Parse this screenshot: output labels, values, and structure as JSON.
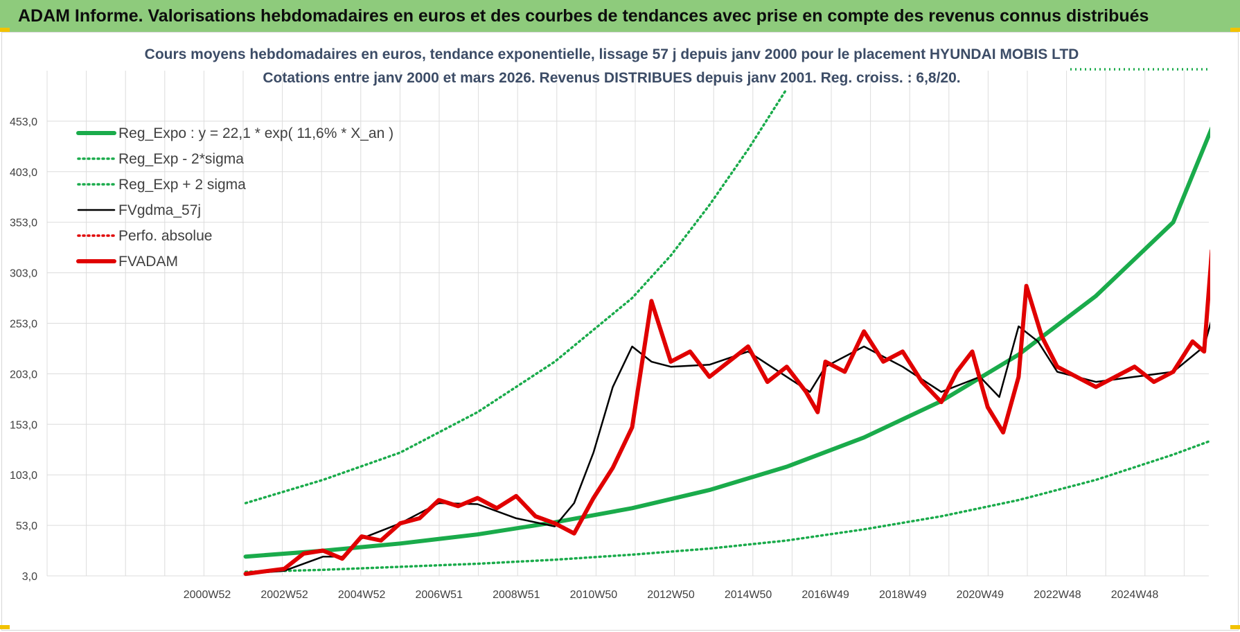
{
  "banner": {
    "title": "ADAM Informe. Valorisations hebdomadaires en euros et des courbes de tendances avec prise en compte des revenus connus distribués"
  },
  "chart_data": {
    "type": "line",
    "title": "Cours moyens hebdomadaires en euros, tendance exponentielle, lissage 57 j depuis janv 2000 pour le placement HYUNDAI MOBIS LTD",
    "subtitle": "Cotations entre janv 2000 et mars 2026. Revenus DISTRIBUES depuis janv 2001. Reg. croiss. : 6,8/20.",
    "ylim": [
      3,
      503
    ],
    "y_ticks": [
      "3,0",
      "53,0",
      "103,0",
      "153,0",
      "203,0",
      "253,0",
      "303,0",
      "353,0",
      "403,0",
      "453,0"
    ],
    "x_ticks": [
      "2000W52",
      "2002W52",
      "2004W52",
      "2006W51",
      "2008W51",
      "2010W50",
      "2012W50",
      "2014W50",
      "2016W49",
      "2018W49",
      "2020W49",
      "2022W48",
      "2024W48"
    ],
    "grid": true,
    "legend_position": "top-left",
    "legend": [
      {
        "label": "Reg_Expo : y = 22,1 * exp( 11,6% *  X_an )",
        "color": "#1aab4b",
        "style": "solid-thick"
      },
      {
        "label": "Reg_Exp - 2*sigma",
        "color": "#1aab4b",
        "style": "dotted"
      },
      {
        "label": "Reg_Exp + 2 sigma",
        "color": "#1aab4b",
        "style": "dotted"
      },
      {
        "label": "FVgdma_57j",
        "color": "#000000",
        "style": "solid"
      },
      {
        "label": "Perfo. absolue",
        "color": "#e00000",
        "style": "dotted"
      },
      {
        "label": "FVADAM",
        "color": "#e00000",
        "style": "solid-thick"
      }
    ],
    "series": [
      {
        "name": "Reg_Expo : y = 22,1 * exp( 11,6% *  X_an )",
        "color": "#1aab4b",
        "x": [
          2001.0,
          2003.0,
          2005.0,
          2007.0,
          2009.0,
          2011.0,
          2013.0,
          2015.0,
          2017.0,
          2019.0,
          2021.0,
          2023.0,
          2025.0,
          2026.2
        ],
        "values": [
          22.1,
          27.9,
          35,
          44,
          56,
          70,
          88,
          111,
          140,
          176,
          222,
          280,
          353,
          465
        ]
      },
      {
        "name": "Reg_Exp - 2*sigma",
        "color": "#1aab4b",
        "x": [
          2001.0,
          2003.0,
          2005.0,
          2007.0,
          2009.0,
          2011.0,
          2013.0,
          2015.0,
          2017.0,
          2019.0,
          2021.0,
          2023.0,
          2025.0,
          2026.2
        ],
        "values": [
          7,
          9,
          12,
          15,
          19,
          24,
          30,
          38,
          49,
          62,
          78,
          98,
          123,
          140
        ]
      },
      {
        "name": "Reg_Exp + 2 sigma",
        "color": "#1aab4b",
        "x": [
          2001.0,
          2003.0,
          2005.0,
          2007.0,
          2009.0,
          2011.0,
          2012.0,
          2013.0,
          2014.0,
          2015.0
        ],
        "values": [
          75,
          98,
          125,
          165,
          215,
          278,
          320,
          370,
          425,
          485
        ]
      },
      {
        "name": "FVgdma_57j",
        "color": "#000000",
        "x": [
          2001.0,
          2002.0,
          2003.0,
          2003.5,
          2004.0,
          2005.0,
          2006.0,
          2007.0,
          2008.0,
          2009.0,
          2009.5,
          2010.0,
          2010.5,
          2011.0,
          2011.5,
          2012.0,
          2013.0,
          2014.0,
          2015.0,
          2015.6,
          2016.0,
          2017.0,
          2018.0,
          2019.0,
          2020.0,
          2020.5,
          2021.0,
          2021.5,
          2022.0,
          2023.0,
          2024.0,
          2025.0,
          2025.8,
          2026.2
        ],
        "values": [
          5,
          8,
          22,
          22,
          40,
          55,
          75,
          74,
          60,
          52,
          75,
          125,
          190,
          230,
          215,
          210,
          212,
          225,
          200,
          185,
          210,
          230,
          210,
          185,
          200,
          180,
          250,
          235,
          205,
          195,
          200,
          205,
          230,
          285
        ]
      },
      {
        "name": "FVADAM",
        "color": "#e00000",
        "x": [
          2001.0,
          2002.0,
          2002.5,
          2003.0,
          2003.5,
          2004.0,
          2004.5,
          2005.0,
          2005.5,
          2006.0,
          2006.5,
          2007.0,
          2007.5,
          2008.0,
          2008.5,
          2009.0,
          2009.5,
          2010.0,
          2010.5,
          2011.0,
          2011.2,
          2011.5,
          2012.0,
          2012.5,
          2013.0,
          2013.5,
          2014.0,
          2014.5,
          2015.0,
          2015.5,
          2015.8,
          2016.0,
          2016.5,
          2017.0,
          2017.5,
          2018.0,
          2018.5,
          2019.0,
          2019.4,
          2019.8,
          2020.2,
          2020.6,
          2021.0,
          2021.2,
          2021.6,
          2022.0,
          2022.5,
          2023.0,
          2023.5,
          2024.0,
          2024.5,
          2025.0,
          2025.5,
          2025.8,
          2026.0,
          2026.2
        ],
        "values": [
          5,
          10,
          25,
          28,
          20,
          42,
          38,
          55,
          60,
          78,
          72,
          80,
          70,
          82,
          62,
          55,
          45,
          80,
          110,
          150,
          200,
          275,
          215,
          225,
          200,
          215,
          230,
          195,
          210,
          185,
          165,
          215,
          205,
          245,
          215,
          225,
          195,
          175,
          205,
          225,
          170,
          145,
          200,
          290,
          240,
          210,
          200,
          190,
          200,
          210,
          195,
          205,
          235,
          225,
          325,
          275
        ]
      }
    ]
  }
}
